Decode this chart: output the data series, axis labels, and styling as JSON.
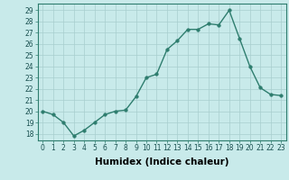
{
  "x": [
    0,
    1,
    2,
    3,
    4,
    5,
    6,
    7,
    8,
    9,
    10,
    11,
    12,
    13,
    14,
    15,
    16,
    17,
    18,
    19,
    20,
    21,
    22,
    23
  ],
  "y": [
    20.0,
    19.7,
    19.0,
    17.8,
    18.3,
    19.0,
    19.7,
    20.0,
    20.1,
    21.3,
    23.0,
    23.3,
    25.5,
    26.3,
    27.3,
    27.3,
    27.8,
    27.7,
    29.0,
    26.5,
    24.0,
    22.1,
    21.5,
    21.4
  ],
  "line_color": "#2e7d6e",
  "marker_color": "#2e7d6e",
  "bg_color": "#c8eaea",
  "grid_color": "#a8cece",
  "xlabel": "Humidex (Indice chaleur)",
  "ylabel_ticks": [
    18,
    19,
    20,
    21,
    22,
    23,
    24,
    25,
    26,
    27,
    28,
    29
  ],
  "xlim": [
    -0.5,
    23.5
  ],
  "ylim": [
    17.4,
    29.6
  ],
  "xticks": [
    0,
    1,
    2,
    3,
    4,
    5,
    6,
    7,
    8,
    9,
    10,
    11,
    12,
    13,
    14,
    15,
    16,
    17,
    18,
    19,
    20,
    21,
    22,
    23
  ],
  "xtick_labels": [
    "0",
    "1",
    "2",
    "3",
    "4",
    "5",
    "6",
    "7",
    "8",
    "9",
    "10",
    "11",
    "12",
    "13",
    "14",
    "15",
    "16",
    "17",
    "18",
    "19",
    "20",
    "21",
    "22",
    "23"
  ],
  "tick_fontsize": 5.5,
  "xlabel_fontsize": 7.5,
  "line_width": 1.0,
  "marker_size": 2.5
}
